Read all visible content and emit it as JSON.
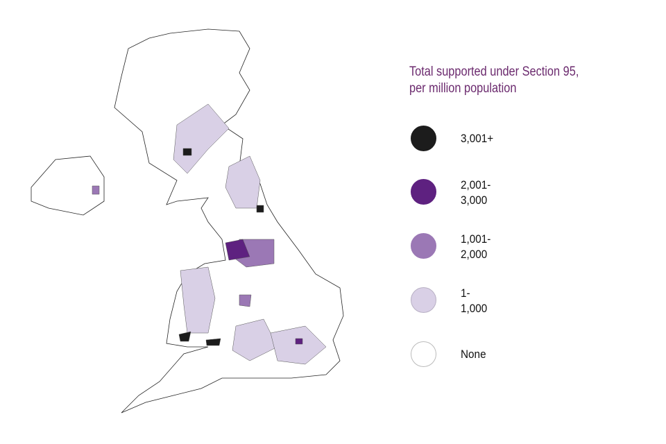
{
  "legend": {
    "title_line1": "Total supported under Section 95,",
    "title_line2": "per million population",
    "items": [
      {
        "label": "3,001+",
        "color": "#1c1c1c"
      },
      {
        "label": "2,001-\n3,000",
        "color": "#5e2180"
      },
      {
        "label": "1,001-\n2,000",
        "color": "#9b78b5"
      },
      {
        "label": "1-\n1,000",
        "color": "#d9d0e6"
      },
      {
        "label": "None",
        "color": "#ffffff"
      }
    ]
  }
}
